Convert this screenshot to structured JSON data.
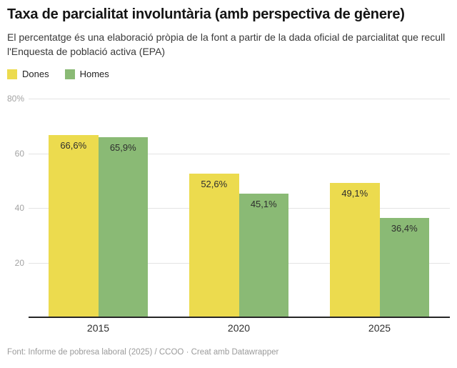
{
  "header": {
    "title": "Taxa de parcialitat involuntària (amb perspectiva de gènere)",
    "subtitle": "El percentatge és una elaboració pròpia de la font a partir de la dada oficial de parcialitat que recull l'Enquesta de població activa (EPA)"
  },
  "legend": {
    "items": [
      {
        "label": "Dones",
        "color": "#ecdb4e"
      },
      {
        "label": "Homes",
        "color": "#8aba75"
      }
    ]
  },
  "chart_data": {
    "type": "bar",
    "title": "Taxa de parcialitat involuntària (amb perspectiva de gènere)",
    "categories": [
      "2015",
      "2020",
      "2025"
    ],
    "series": [
      {
        "name": "Dones",
        "color": "#ecdb4e",
        "values": [
          66.6,
          52.6,
          49.1
        ],
        "labels": [
          "66,6%",
          "52,6%",
          "49,1%"
        ]
      },
      {
        "name": "Homes",
        "color": "#8aba75",
        "values": [
          65.9,
          45.1,
          36.4
        ],
        "labels": [
          "65,9%",
          "45,1%",
          "36,4%"
        ]
      }
    ],
    "xlabel": "",
    "ylabel": "",
    "ylim": [
      0,
      80
    ],
    "yticks": [
      {
        "value": 20,
        "label": "20"
      },
      {
        "value": 40,
        "label": "40"
      },
      {
        "value": 60,
        "label": "60"
      },
      {
        "value": 80,
        "label": "80%"
      }
    ],
    "grid": true,
    "legend_position": "top-left"
  },
  "colors": {
    "dones": "#ecdb4e",
    "homes": "#8aba75",
    "axis_line": "#262626",
    "gridline": "#e4e4e4",
    "tick_label": "#a3a3a3",
    "value_label": "#2e2e2e"
  },
  "footer": {
    "text": "Font: Informe de pobresa laboral (2025) / CCOO · Creat amb Datawrapper"
  }
}
